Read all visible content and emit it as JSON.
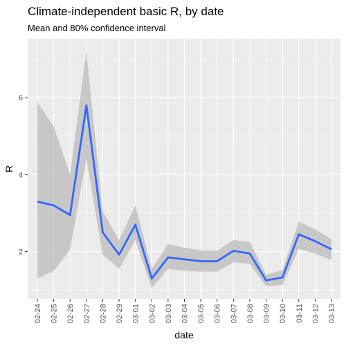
{
  "chart_data": {
    "type": "line",
    "title": "Climate-independent basic R, by date",
    "subtitle": "Mean and 80% confidence interval",
    "xlabel": "date",
    "ylabel": "R",
    "categories": [
      "02-24",
      "02-25",
      "02-26",
      "02-27",
      "02-28",
      "02-29",
      "03-01",
      "03-02",
      "03-03",
      "03-04",
      "03-05",
      "03-06",
      "03-07",
      "03-08",
      "03-09",
      "03-10",
      "03-11",
      "03-12",
      "03-13"
    ],
    "series": [
      {
        "values": [
          3.3,
          3.2,
          2.95,
          5.8,
          2.5,
          1.92,
          2.7,
          1.3,
          1.85,
          1.8,
          1.75,
          1.75,
          2.02,
          1.95,
          1.25,
          1.33,
          2.45,
          2.27,
          2.06
        ]
      }
    ],
    "band": {
      "lower": [
        1.3,
        1.5,
        2.05,
        4.4,
        1.92,
        1.55,
        2.3,
        1.05,
        1.55,
        1.5,
        1.48,
        1.48,
        1.72,
        1.68,
        1.1,
        1.13,
        2.07,
        1.95,
        1.78
      ],
      "upper": [
        5.88,
        5.25,
        4.0,
        7.2,
        3.05,
        2.3,
        3.2,
        1.55,
        2.2,
        2.1,
        2.03,
        2.02,
        2.3,
        2.25,
        1.4,
        1.52,
        2.78,
        2.58,
        2.32
      ]
    },
    "y_ticks": [
      2,
      4,
      6
    ],
    "ylim": [
      0.77,
      7.53
    ],
    "grid": true,
    "legend": "none",
    "colors": {
      "line": "#3366FF",
      "band": "#BEBEBE",
      "panel": "#EBEBEB",
      "grid_major": "#FFFFFF",
      "text": "#000000",
      "tick_text": "#4D4D4D"
    }
  }
}
